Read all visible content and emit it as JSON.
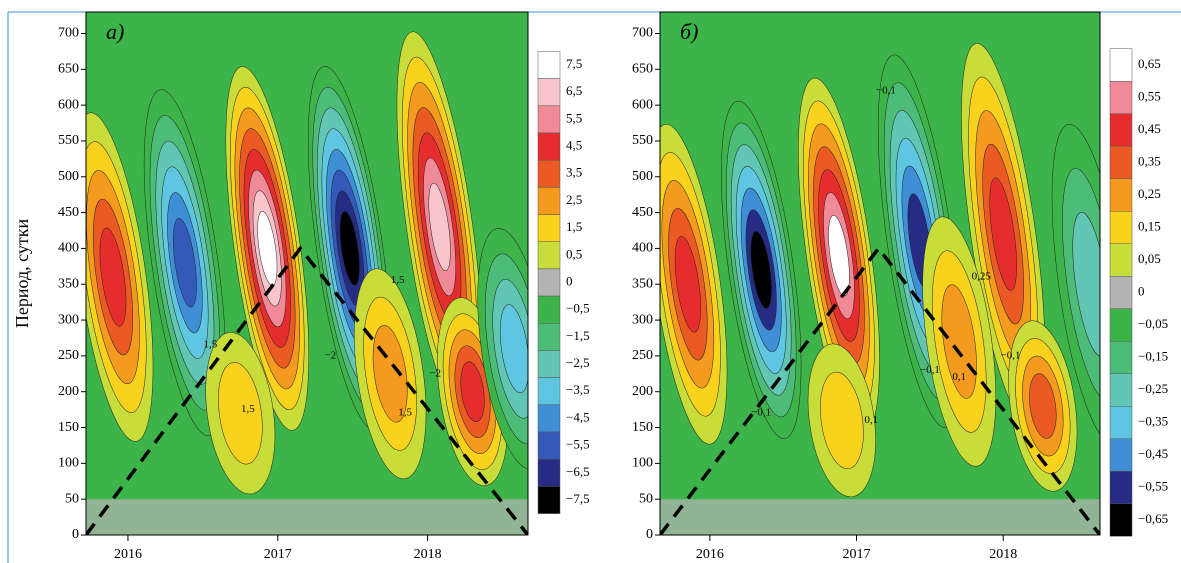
{
  "chart_data": [
    {
      "type": "contour",
      "title": "а)",
      "y_label": "Период, сутки",
      "xlim": [
        2015.72,
        2018.67
      ],
      "xticks": [
        2016,
        2017,
        2018
      ],
      "ylim": [
        0,
        730
      ],
      "yticks": [
        0,
        50,
        100,
        150,
        200,
        250,
        300,
        350,
        400,
        450,
        500,
        550,
        600,
        650,
        700
      ],
      "background_color": "#3cb44a",
      "levels": [
        {
          "value": 7.5,
          "label": "7,5",
          "color": "#ffffff"
        },
        {
          "value": 6.5,
          "label": "6,5",
          "color": "#f7c6cc"
        },
        {
          "value": 5.5,
          "label": "5,5",
          "color": "#ef8a96"
        },
        {
          "value": 4.5,
          "label": "4,5",
          "color": "#e52d2d"
        },
        {
          "value": 3.5,
          "label": "3,5",
          "color": "#ea5a22"
        },
        {
          "value": 2.5,
          "label": "2,5",
          "color": "#f39a1f"
        },
        {
          "value": 1.5,
          "label": "1,5",
          "color": "#f8d21c"
        },
        {
          "value": 0.5,
          "label": "0,5",
          "color": "#c8dc3a"
        },
        {
          "value": 0,
          "label": "0",
          "color": "#b4b4b4"
        },
        {
          "value": -0.5,
          "label": "−0,5",
          "color": "#3cb44a"
        },
        {
          "value": -1.5,
          "label": "−1,5",
          "color": "#4cbc78"
        },
        {
          "value": -2.5,
          "label": "−2,5",
          "color": "#62c6b4"
        },
        {
          "value": -3.5,
          "label": "−3,5",
          "color": "#5ec6e0"
        },
        {
          "value": -4.5,
          "label": "−4,5",
          "color": "#3f8fd6"
        },
        {
          "value": -5.5,
          "label": "−5,5",
          "color": "#3459b8"
        },
        {
          "value": -6.5,
          "label": "−6,5",
          "color": "#262c84"
        },
        {
          "value": -7.5,
          "label": "−7,5",
          "color": "#000000"
        }
      ],
      "peaks": [
        {
          "x": 2015.9,
          "y": 360,
          "value": 4.5
        },
        {
          "x": 2016.38,
          "y": 380,
          "value": -5.5
        },
        {
          "x": 2016.93,
          "y": 400,
          "value": 7.5
        },
        {
          "x": 2017.48,
          "y": 400,
          "value": -7.5
        },
        {
          "x": 2018.08,
          "y": 430,
          "value": 6.5
        },
        {
          "x": 2017.75,
          "y": 225,
          "value": 2.5
        },
        {
          "x": 2018.3,
          "y": 200,
          "value": 4.5
        },
        {
          "x": 2016.75,
          "y": 170,
          "value": 1.5
        },
        {
          "x": 2018.58,
          "y": 260,
          "value": -3.5
        }
      ],
      "coi": {
        "x": [
          2015.72,
          2017.15,
          2018.67
        ],
        "y": [
          0,
          400,
          0
        ]
      },
      "annotations": [
        {
          "text": "1,5",
          "x": 2016.55,
          "y": 265
        },
        {
          "text": "1,5",
          "x": 2016.8,
          "y": 175
        },
        {
          "text": "−2",
          "x": 2017.35,
          "y": 250
        },
        {
          "text": "1,5",
          "x": 2017.8,
          "y": 355
        },
        {
          "text": "1,5",
          "x": 2017.85,
          "y": 170
        },
        {
          "text": "−2",
          "x": 2018.05,
          "y": 225
        }
      ]
    },
    {
      "type": "contour",
      "title": "б)",
      "xlim": [
        2015.66,
        2018.66
      ],
      "xticks": [
        2016,
        2017,
        2018
      ],
      "ylim": [
        0,
        730
      ],
      "yticks": [
        0,
        50,
        100,
        150,
        200,
        250,
        300,
        350,
        400,
        450,
        500,
        550,
        600,
        650,
        700
      ],
      "background_color": "#3cb44a",
      "levels": [
        {
          "value": 0.65,
          "label": "0,65",
          "color": "#ffffff"
        },
        {
          "value": 0.55,
          "label": "0,55",
          "color": "#ef8a96"
        },
        {
          "value": 0.45,
          "label": "0,45",
          "color": "#e52d2d"
        },
        {
          "value": 0.35,
          "label": "0,35",
          "color": "#ea5a22"
        },
        {
          "value": 0.25,
          "label": "0,25",
          "color": "#f39a1f"
        },
        {
          "value": 0.15,
          "label": "0,15",
          "color": "#f8d21c"
        },
        {
          "value": 0.05,
          "label": "0,05",
          "color": "#c8dc3a"
        },
        {
          "value": 0,
          "label": "0",
          "color": "#b4b4b4"
        },
        {
          "value": -0.05,
          "label": "−0,05",
          "color": "#3cb44a"
        },
        {
          "value": -0.15,
          "label": "−0,15",
          "color": "#4cbc78"
        },
        {
          "value": -0.25,
          "label": "−0,25",
          "color": "#62c6b4"
        },
        {
          "value": -0.35,
          "label": "−0,35",
          "color": "#5ec6e0"
        },
        {
          "value": -0.45,
          "label": "−0,45",
          "color": "#3f8fd6"
        },
        {
          "value": -0.55,
          "label": "−0,55",
          "color": "#262c84"
        },
        {
          "value": -0.65,
          "label": "−0,65",
          "color": "#000000"
        }
      ],
      "peaks": [
        {
          "x": 2015.85,
          "y": 350,
          "value": 0.45
        },
        {
          "x": 2016.35,
          "y": 370,
          "value": -0.65
        },
        {
          "x": 2016.88,
          "y": 390,
          "value": 0.65
        },
        {
          "x": 2017.43,
          "y": 410,
          "value": -0.55
        },
        {
          "x": 2018.0,
          "y": 420,
          "value": 0.45
        },
        {
          "x": 2017.7,
          "y": 270,
          "value": 0.25
        },
        {
          "x": 2018.27,
          "y": 180,
          "value": 0.35
        },
        {
          "x": 2018.6,
          "y": 350,
          "value": -0.25
        },
        {
          "x": 2016.9,
          "y": 160,
          "value": 0.15
        }
      ],
      "coi": {
        "x": [
          2015.66,
          2017.15,
          2018.66
        ],
        "y": [
          0,
          400,
          0
        ]
      },
      "annotations": [
        {
          "text": "−0,1",
          "x": 2017.2,
          "y": 620
        },
        {
          "text": "0,25",
          "x": 2017.85,
          "y": 360
        },
        {
          "text": "0,1",
          "x": 2017.7,
          "y": 220
        },
        {
          "text": "−0,1",
          "x": 2017.5,
          "y": 230
        },
        {
          "text": "−0,1",
          "x": 2018.05,
          "y": 250
        },
        {
          "text": "−0,1",
          "x": 2016.35,
          "y": 170
        },
        {
          "text": "0,1",
          "x": 2017.1,
          "y": 160
        }
      ]
    }
  ]
}
